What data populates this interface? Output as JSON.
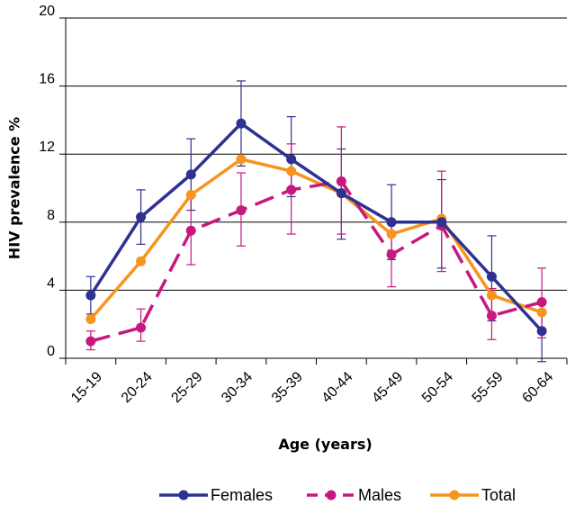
{
  "chart_data": {
    "type": "line",
    "xlabel": "Age (years)",
    "ylabel": "HIV prevalence %",
    "categories": [
      "15-19",
      "20-24",
      "25-29",
      "30-34",
      "35-39",
      "40-44",
      "45-49",
      "50-54",
      "55-59",
      "60-64"
    ],
    "ylim": [
      0,
      20
    ],
    "yticks": [
      "0",
      "4",
      "8",
      "12",
      "16",
      "20"
    ],
    "grid": "horizontal",
    "legend_position": "bottom",
    "series": [
      {
        "name": "Females",
        "color": "#2e3192",
        "dashed": false,
        "error_bars": true,
        "values": [
          3.7,
          8.3,
          10.8,
          13.8,
          11.7,
          9.7,
          8.0,
          8.0,
          4.8,
          1.6
        ],
        "lower": [
          2.6,
          6.7,
          8.7,
          11.3,
          9.5,
          7.0,
          5.8,
          5.3,
          2.2,
          -0.2
        ],
        "upper": [
          4.8,
          9.9,
          12.9,
          16.3,
          14.2,
          12.3,
          10.2,
          10.5,
          7.2,
          3.4
        ]
      },
      {
        "name": "Males",
        "color": "#c8177e",
        "dashed": true,
        "error_bars": true,
        "values": [
          1.0,
          1.8,
          7.5,
          8.7,
          9.9,
          10.4,
          6.1,
          7.8,
          2.5,
          3.3
        ],
        "lower": [
          0.5,
          1.0,
          5.5,
          6.6,
          7.3,
          7.3,
          4.2,
          5.1,
          1.1,
          1.2
        ],
        "upper": [
          1.6,
          2.9,
          9.5,
          10.9,
          12.6,
          13.6,
          8.1,
          11.0,
          4.1,
          5.3
        ]
      },
      {
        "name": "Total",
        "color": "#f7941d",
        "dashed": false,
        "error_bars": false,
        "values": [
          2.3,
          5.7,
          9.6,
          11.7,
          11.0,
          9.7,
          7.3,
          8.2,
          3.7,
          2.7
        ]
      }
    ]
  }
}
